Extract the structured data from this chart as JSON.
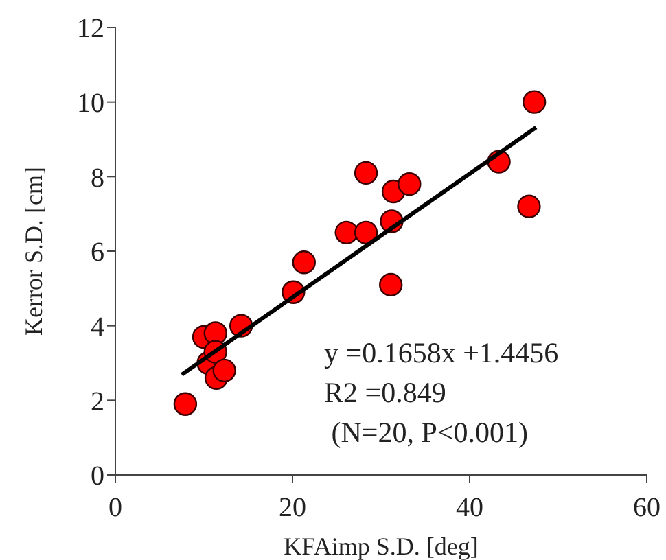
{
  "chart_data": {
    "type": "scatter",
    "xlabel": "KFAimp S.D. [deg]",
    "ylabel": "Kerror S.D. [cm]",
    "x": [
      7.9,
      10.0,
      11.3,
      10.5,
      11.3,
      11.4,
      12.3,
      14.2,
      20.1,
      21.3,
      26.1,
      28.3,
      28.3,
      31.2,
      31.1,
      31.4,
      33.2,
      43.3,
      46.7,
      47.3
    ],
    "series": [
      {
        "color": "#ff0000",
        "marker": "circle",
        "values": [
          1.9,
          3.7,
          3.8,
          3.0,
          3.3,
          2.6,
          2.8,
          4.0,
          4.9,
          5.7,
          6.5,
          6.5,
          8.1,
          6.8,
          5.1,
          7.6,
          7.8,
          8.4,
          7.2,
          10.0
        ]
      },
      {
        "type": "line",
        "marker": "none",
        "color": "#000000",
        "x": [
          7.5,
          47.5
        ],
        "values": [
          2.69,
          9.32
        ]
      }
    ],
    "xlim": [
      0,
      60
    ],
    "xticks": [
      0,
      20,
      40,
      60
    ],
    "ylim": [
      0,
      12
    ],
    "yticks": [
      0,
      2,
      4,
      6,
      8,
      10,
      12
    ],
    "grid": false,
    "legend": false,
    "annotations": [
      "y =0.1658x +1.4456",
      "R2 =0.849",
      " (N=20, P<0.001)"
    ]
  }
}
